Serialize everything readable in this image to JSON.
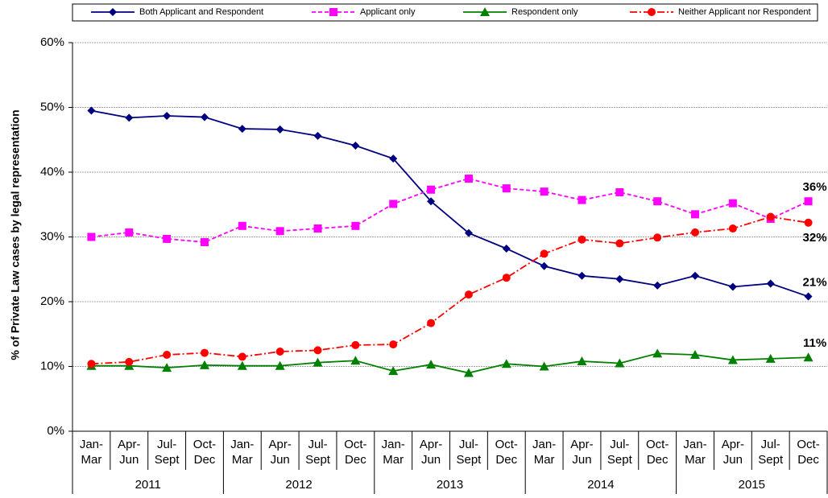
{
  "chart_data": {
    "type": "line",
    "y_label": "% of Private Law cases by legal representation",
    "categories": [
      [
        "Jan-",
        "Mar"
      ],
      [
        "Apr-",
        "Jun"
      ],
      [
        "Jul-",
        "Sept"
      ],
      [
        "Oct-",
        "Dec"
      ],
      [
        "Jan-",
        "Mar"
      ],
      [
        "Apr-",
        "Jun"
      ],
      [
        "Jul-",
        "Sept"
      ],
      [
        "Oct-",
        "Dec"
      ],
      [
        "Jan-",
        "Mar"
      ],
      [
        "Apr-",
        "Jun"
      ],
      [
        "Jul-",
        "Sept"
      ],
      [
        "Oct-",
        "Dec"
      ],
      [
        "Jan-",
        "Mar"
      ],
      [
        "Apr-",
        "Jun"
      ],
      [
        "Jul-",
        "Sept"
      ],
      [
        "Oct-",
        "Dec"
      ],
      [
        "Jan-",
        "Mar"
      ],
      [
        "Apr-",
        "Jun"
      ],
      [
        "Jul-",
        "Sept"
      ],
      [
        "Oct-",
        "Dec"
      ]
    ],
    "years": [
      "2011",
      "2012",
      "2013",
      "2014",
      "2015"
    ],
    "ylim": [
      0,
      60
    ],
    "yticks": [
      {
        "value": 0,
        "label": "0%"
      },
      {
        "value": 10,
        "label": "10%"
      },
      {
        "value": 20,
        "label": "20%"
      },
      {
        "value": 30,
        "label": "30%"
      },
      {
        "value": 40,
        "label": "40%"
      },
      {
        "value": 50,
        "label": "50%"
      },
      {
        "value": 60,
        "label": "60%"
      }
    ],
    "grid": true,
    "legend": "top",
    "series": [
      {
        "name": "Both Applicant and Respondent",
        "color": "#000080",
        "marker": "diamond",
        "dash": "solid",
        "values": [
          49.5,
          48.4,
          48.7,
          48.5,
          46.7,
          46.6,
          45.6,
          44.1,
          42.1,
          35.5,
          30.6,
          28.2,
          25.5,
          24.0,
          23.5,
          22.5,
          24.0,
          22.3,
          22.8,
          20.8
        ],
        "value_labels": [
          null,
          null,
          null,
          null,
          null,
          null,
          null,
          null,
          null,
          null,
          null,
          null,
          null,
          null,
          null,
          null,
          null,
          null,
          null,
          "21%"
        ]
      },
      {
        "name": "Applicant only",
        "color": "#ff00ff",
        "marker": "square",
        "dash": "dash",
        "values": [
          30.0,
          30.7,
          29.7,
          29.2,
          31.7,
          30.9,
          31.3,
          31.7,
          35.1,
          37.3,
          39.0,
          37.5,
          37.0,
          35.7,
          36.9,
          35.5,
          33.5,
          35.2,
          32.8,
          35.5
        ],
        "value_labels": [
          null,
          null,
          null,
          null,
          null,
          null,
          null,
          null,
          null,
          null,
          null,
          null,
          null,
          null,
          null,
          null,
          null,
          null,
          null,
          "36%"
        ]
      },
      {
        "name": "Respondent only",
        "color": "#008000",
        "marker": "triangle",
        "dash": "solid",
        "values": [
          10.1,
          10.1,
          9.8,
          10.2,
          10.1,
          10.1,
          10.6,
          10.9,
          9.3,
          10.3,
          9.0,
          10.4,
          10.0,
          10.8,
          10.5,
          12.0,
          11.8,
          11.0,
          11.2,
          11.4
        ],
        "value_labels": [
          null,
          null,
          null,
          null,
          null,
          null,
          null,
          null,
          null,
          null,
          null,
          null,
          null,
          null,
          null,
          null,
          null,
          null,
          null,
          "11%"
        ]
      },
      {
        "name": "Neither Applicant nor Respondent",
        "color": "#ff0000",
        "marker": "circle",
        "dash": "dashdot",
        "values": [
          10.4,
          10.7,
          11.8,
          12.1,
          11.5,
          12.3,
          12.5,
          13.3,
          13.4,
          16.7,
          21.1,
          23.7,
          27.4,
          29.6,
          29.0,
          29.9,
          30.7,
          31.3,
          33.1,
          32.2
        ],
        "value_labels": [
          null,
          null,
          null,
          null,
          null,
          null,
          null,
          null,
          null,
          null,
          null,
          null,
          null,
          null,
          null,
          null,
          null,
          null,
          null,
          "32%"
        ]
      }
    ]
  }
}
